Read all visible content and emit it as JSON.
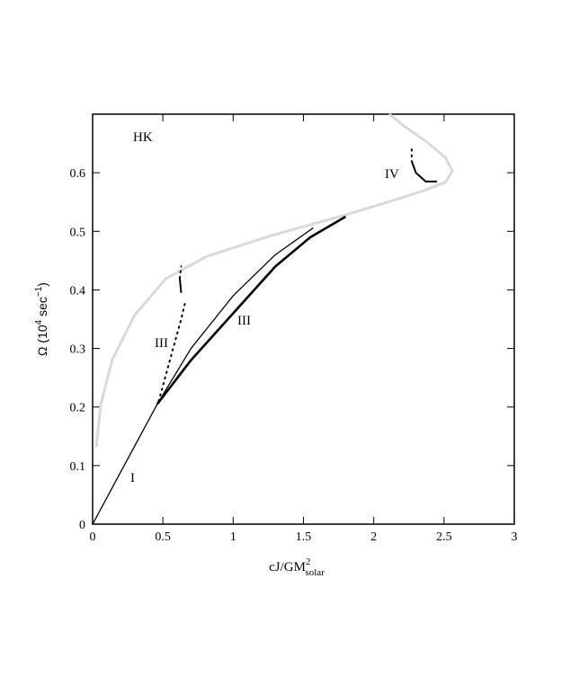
{
  "chart_data": {
    "type": "line",
    "xlabel": {
      "base": "cJ/GM",
      "sup": "2",
      "sub": "solar"
    },
    "ylabel": [
      "Ω (10",
      "4",
      " sec",
      "−1",
      ")"
    ],
    "annotations": [
      "HK",
      "IV",
      "III",
      "III",
      "I"
    ],
    "xlim": [
      0,
      3
    ],
    "ylim": [
      0,
      0.7
    ],
    "xticks": [
      0,
      0.5,
      1,
      1.5,
      2,
      2.5,
      3
    ],
    "yticks": [
      0,
      0.1,
      0.2,
      0.3,
      0.4,
      0.5,
      0.6
    ],
    "grid": false,
    "series": [
      {
        "color": "#d9d9d9",
        "style": "solid",
        "width": 3,
        "x": [
          0.026,
          0.058,
          0.14,
          0.3,
          0.52,
          0.81,
          1.26,
          1.77,
          2.09,
          2.35,
          2.51,
          2.56,
          2.51,
          2.38,
          2.22,
          2.11
        ],
        "values": [
          0.132,
          0.204,
          0.281,
          0.357,
          0.419,
          0.457,
          0.492,
          0.526,
          0.549,
          0.569,
          0.584,
          0.603,
          0.626,
          0.652,
          0.679,
          0.7
        ]
      },
      {
        "color": "#000000",
        "style": "solid",
        "width": 1.3,
        "x": [
          0,
          0.46,
          0.7,
          1.0,
          1.3,
          1.57
        ],
        "values": [
          0,
          0.205,
          0.3,
          0.39,
          0.46,
          0.506
        ]
      },
      {
        "color": "#000000",
        "style": "solid",
        "width": 2.6,
        "x": [
          0.46,
          0.7,
          1.0,
          1.3,
          1.55,
          1.8
        ],
        "values": [
          0.205,
          0.28,
          0.36,
          0.44,
          0.49,
          0.525
        ]
      },
      {
        "color": "#000000",
        "style": "dotted",
        "width": 2,
        "x": [
          0.47,
          0.55,
          0.63,
          0.66
        ],
        "values": [
          0.21,
          0.28,
          0.35,
          0.38
        ]
      },
      {
        "color": "#000000",
        "style": "solid",
        "width": 2,
        "x": [
          0.63,
          0.62
        ],
        "values": [
          0.395,
          0.42
        ]
      },
      {
        "color": "#000000",
        "style": "dotted",
        "width": 2,
        "x": [
          0.62,
          0.63
        ],
        "values": [
          0.42,
          0.44
        ]
      },
      {
        "color": "#000000",
        "style": "dotted",
        "width": 2,
        "x": [
          2.27,
          2.27
        ],
        "values": [
          0.64,
          0.62
        ]
      },
      {
        "color": "#000000",
        "style": "solid",
        "width": 2,
        "x": [
          2.27,
          2.3,
          2.37,
          2.45
        ],
        "values": [
          0.62,
          0.6,
          0.585,
          0.585
        ]
      }
    ]
  }
}
